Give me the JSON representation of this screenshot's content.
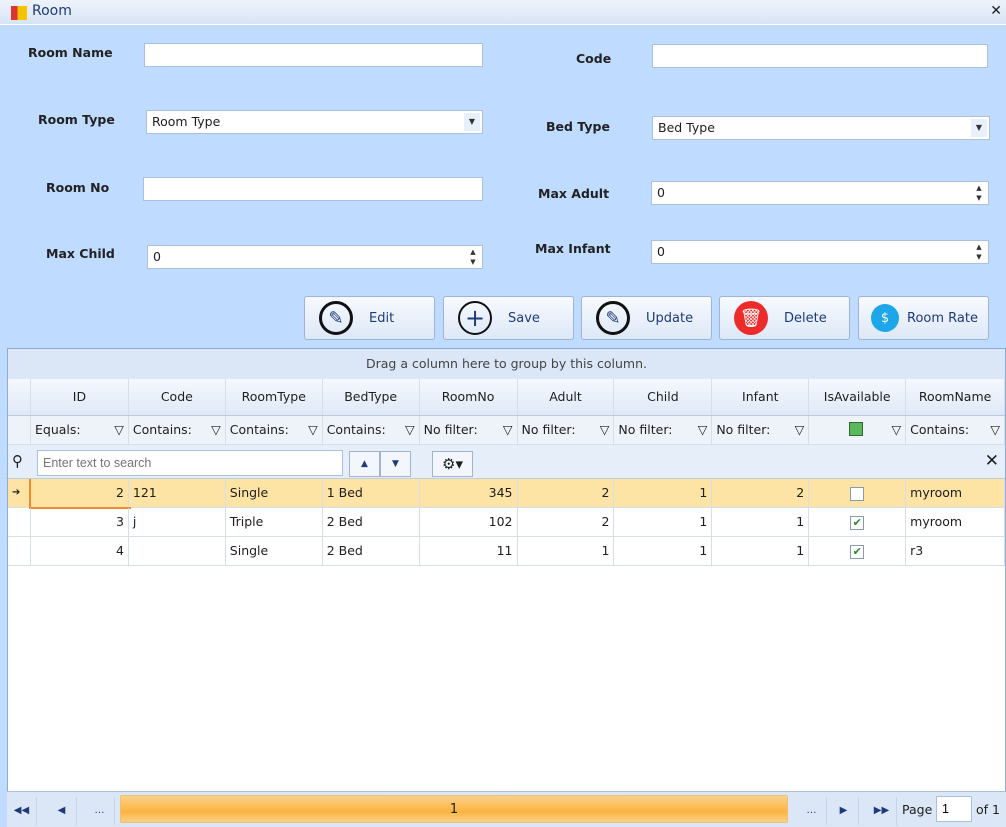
{
  "window": {
    "title": "Room",
    "close": "✕"
  },
  "form": {
    "room_name_label": "Room Name",
    "room_name_value": "",
    "code_label": "Code",
    "code_value": "",
    "room_type_label": "Room Type",
    "room_type_value": "Room Type",
    "bed_type_label": "Bed Type",
    "bed_type_value": "Bed Type",
    "room_no_label": "Room No",
    "room_no_value": "",
    "max_adult_label": "Max Adult",
    "max_adult_value": "0",
    "max_child_label": "Max Child",
    "max_child_value": "0",
    "max_infant_label": "Max Infant",
    "max_infant_value": "0"
  },
  "buttons": {
    "edit": "Edit",
    "save": "Save",
    "update": "Update",
    "delete": "Delete",
    "room_rate": "Room Rate"
  },
  "grid": {
    "group_panel": "Drag a column here to group by this column.",
    "columns": [
      "ID",
      "Code",
      "RoomType",
      "BedType",
      "RoomNo",
      "Adult",
      "Child",
      "Infant",
      "IsAvailable",
      "RoomName"
    ],
    "filters": [
      "Equals:",
      "Contains:",
      "Contains:",
      "Contains:",
      "No filter:",
      "No filter:",
      "No filter:",
      "No filter:",
      "",
      "Contains:"
    ],
    "search_placeholder": "Enter text to search",
    "rows": [
      {
        "id": "2",
        "code": "121",
        "room_type": "Single",
        "bed_type": "1 Bed",
        "room_no": "345",
        "adult": "2",
        "child": "1",
        "infant": "2",
        "available": false,
        "room_name": "myroom"
      },
      {
        "id": "3",
        "code": "j",
        "room_type": "Triple",
        "bed_type": "2 Bed",
        "room_no": "102",
        "adult": "2",
        "child": "1",
        "infant": "1",
        "available": true,
        "room_name": "myroom"
      },
      {
        "id": "4",
        "code": "",
        "room_type": "Single",
        "bed_type": "2 Bed",
        "room_no": "11",
        "adult": "1",
        "child": "1",
        "infant": "1",
        "available": true,
        "room_name": "r3"
      }
    ]
  },
  "pager": {
    "current": "1",
    "page_label": "Page",
    "page_value": "1",
    "of_label": "of 1"
  }
}
